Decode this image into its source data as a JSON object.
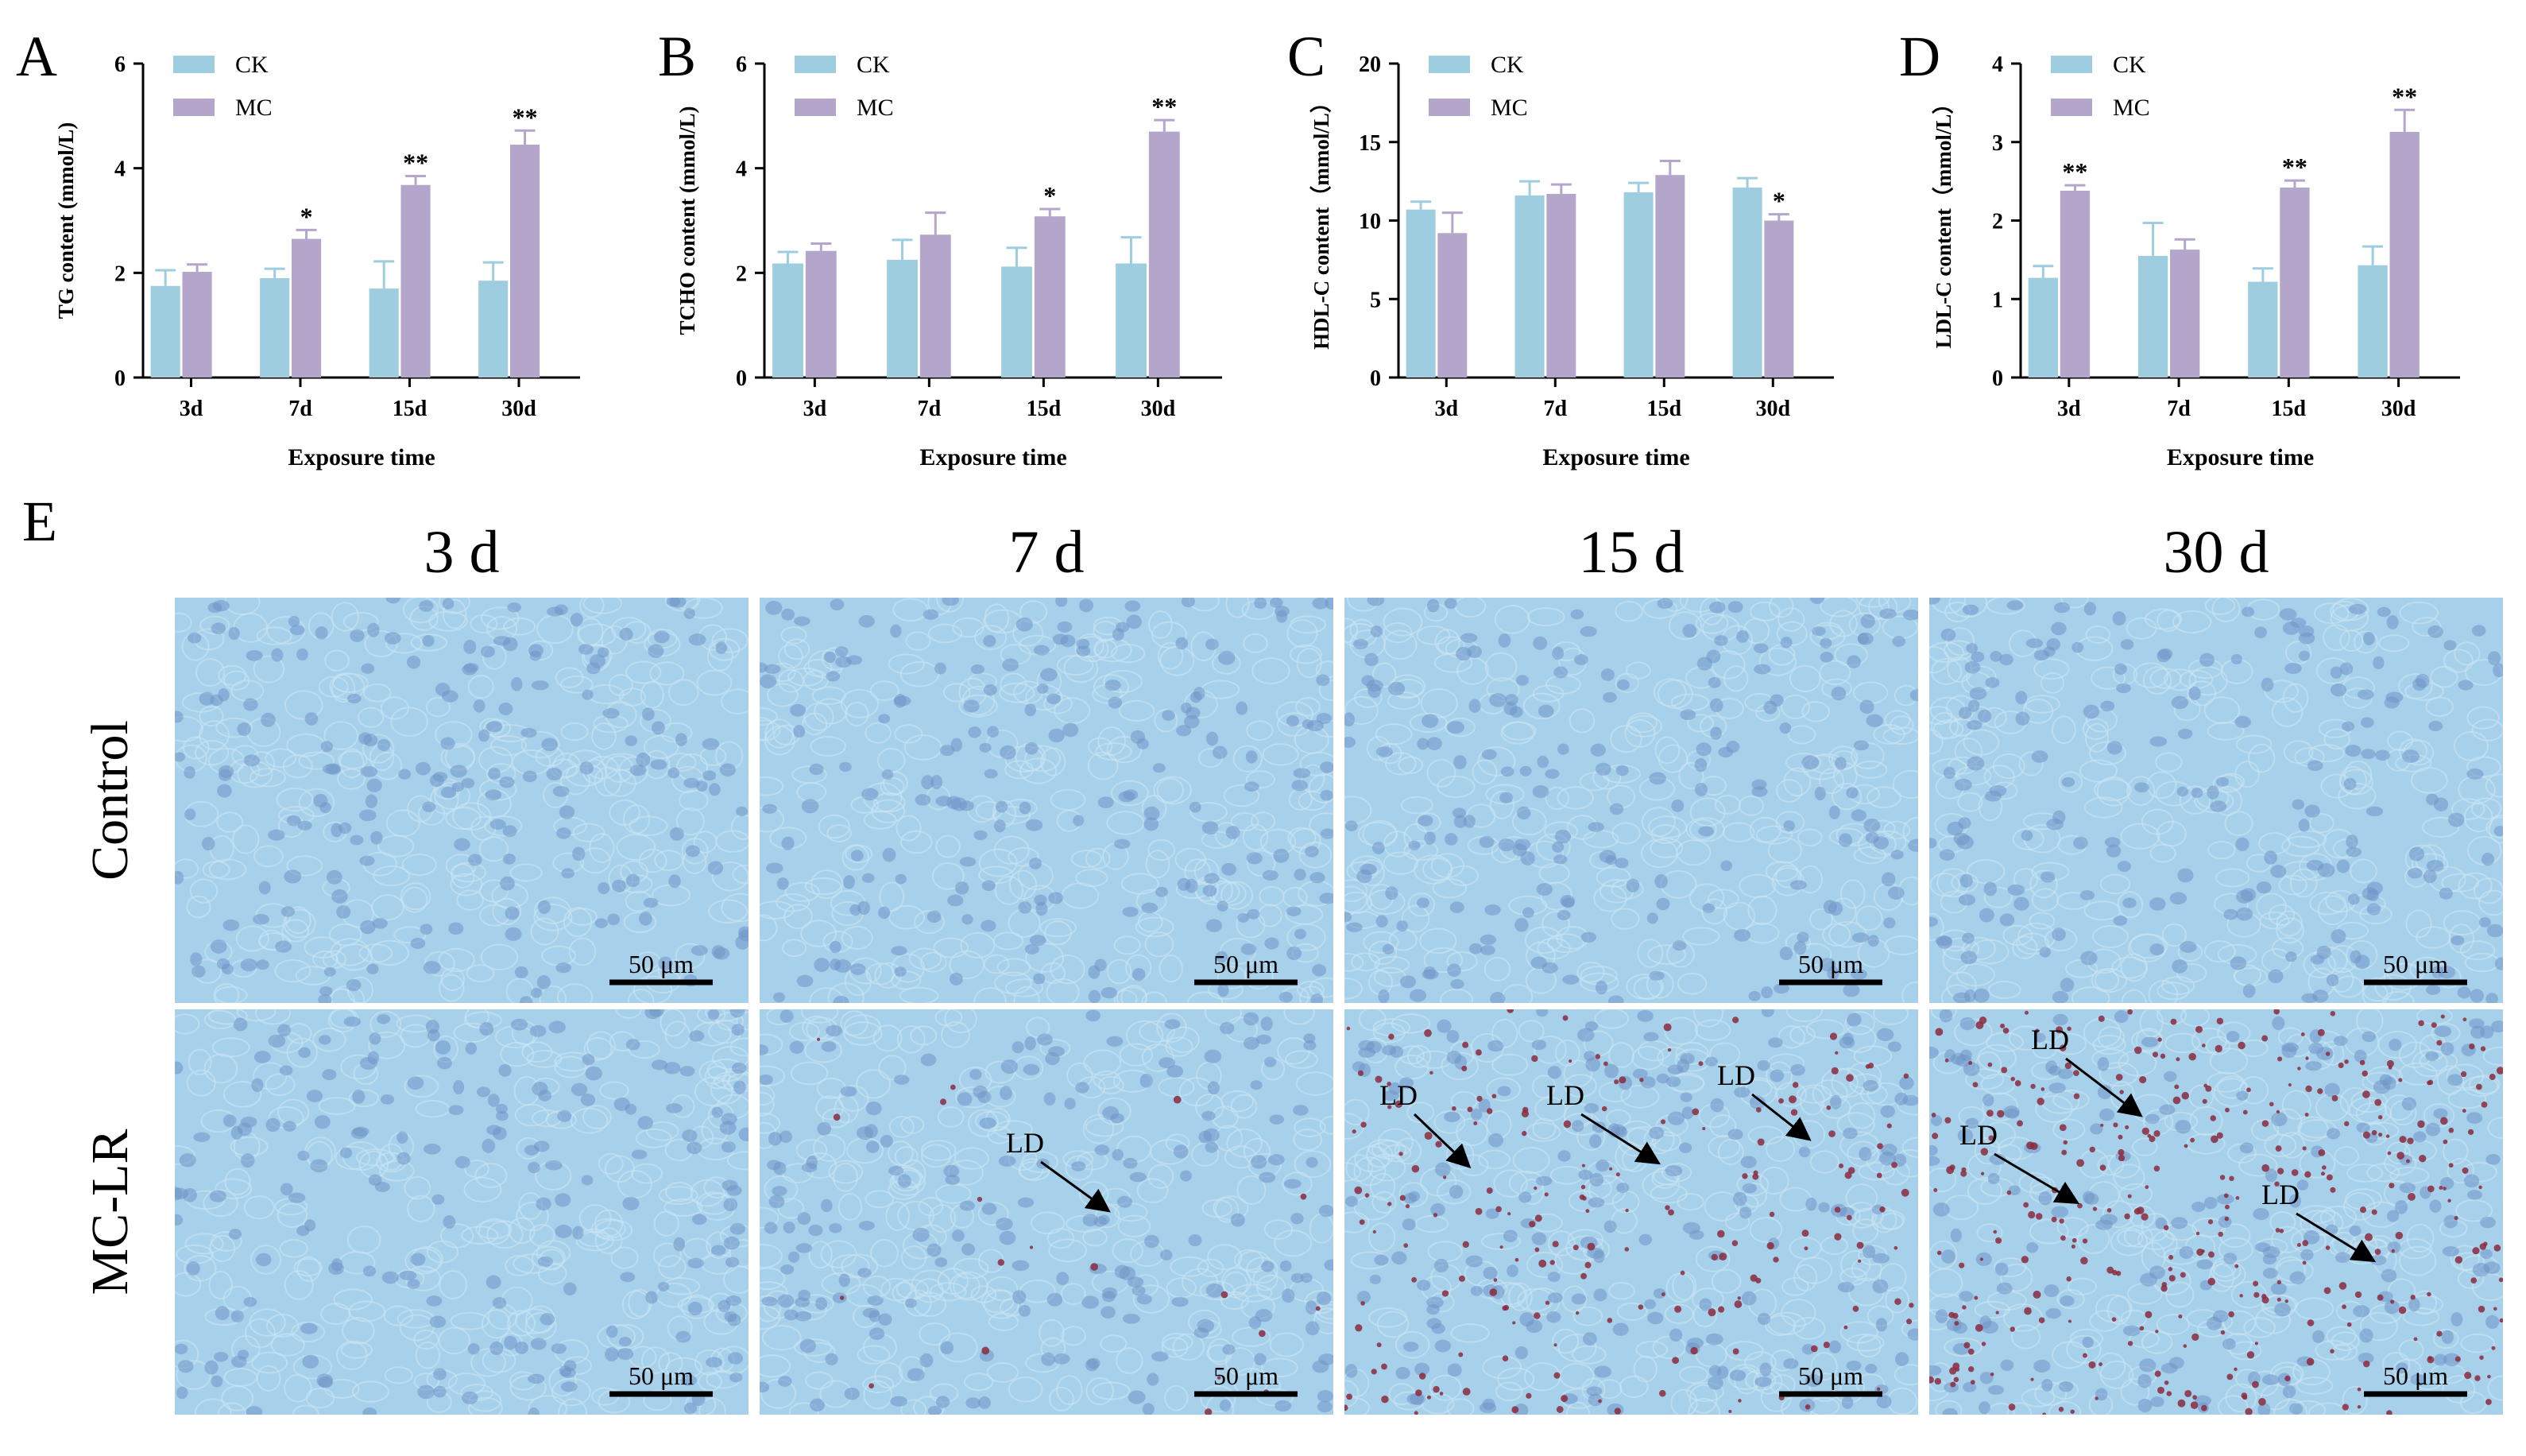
{
  "legend_labels": [
    "CK",
    "MC"
  ],
  "colors": {
    "CK": "#9ecde0",
    "MC": "#b3a6ca",
    "tissue_bg": "#a7d1ea",
    "nucleus": "#6f93c7",
    "lipid": "#8b2a3e"
  },
  "chart_data": [
    {
      "panel": "A",
      "type": "bar",
      "categories": [
        "3d",
        "7d",
        "15d",
        "30d"
      ],
      "ylabel": "TG content (mmol/L)",
      "xlabel": "Exposure time",
      "ylim": [
        0,
        6
      ],
      "yticks": [
        "0",
        "2",
        "4",
        "6"
      ],
      "series": [
        {
          "name": "CK",
          "values": [
            1.75,
            1.9,
            1.7,
            1.85
          ],
          "errors": [
            0.3,
            0.18,
            0.52,
            0.35
          ]
        },
        {
          "name": "MC",
          "values": [
            2.02,
            2.65,
            3.68,
            4.45
          ],
          "errors": [
            0.14,
            0.17,
            0.17,
            0.27
          ]
        }
      ],
      "significance": [
        "",
        "*",
        "**",
        "**"
      ],
      "legend": "top-left",
      "grid": false
    },
    {
      "panel": "B",
      "type": "bar",
      "categories": [
        "3d",
        "7d",
        "15d",
        "30d"
      ],
      "ylabel": "TCHO content (mmol/L)",
      "xlabel": "Exposure time",
      "ylim": [
        0,
        6
      ],
      "yticks": [
        "0",
        "2",
        "4",
        "6"
      ],
      "series": [
        {
          "name": "CK",
          "values": [
            2.18,
            2.25,
            2.12,
            2.18
          ],
          "errors": [
            0.22,
            0.38,
            0.36,
            0.5
          ]
        },
        {
          "name": "MC",
          "values": [
            2.42,
            2.73,
            3.08,
            4.7
          ],
          "errors": [
            0.14,
            0.42,
            0.14,
            0.22
          ]
        }
      ],
      "significance": [
        "",
        "",
        "*",
        "**"
      ],
      "legend": "top-left",
      "grid": false
    },
    {
      "panel": "C",
      "type": "bar",
      "categories": [
        "3d",
        "7d",
        "15d",
        "30d"
      ],
      "ylabel": "HDL-C content（mmol/L）",
      "xlabel": "Exposure time",
      "ylim": [
        0,
        20
      ],
      "yticks": [
        "0",
        "5",
        "10",
        "15",
        "20"
      ],
      "series": [
        {
          "name": "CK",
          "values": [
            10.7,
            11.6,
            11.8,
            12.1
          ],
          "errors": [
            0.5,
            0.9,
            0.6,
            0.6
          ]
        },
        {
          "name": "MC",
          "values": [
            9.2,
            11.7,
            12.9,
            10.0
          ],
          "errors": [
            1.3,
            0.6,
            0.9,
            0.4
          ]
        }
      ],
      "significance": [
        "",
        "",
        "",
        "*"
      ],
      "legend": "top-left",
      "grid": false
    },
    {
      "panel": "D",
      "type": "bar",
      "categories": [
        "3d",
        "7d",
        "15d",
        "30d"
      ],
      "ylabel": "LDL-C content（mmol/L）",
      "xlabel": "Exposure time",
      "ylim": [
        0,
        4
      ],
      "yticks": [
        "0",
        "1",
        "2",
        "3",
        "4"
      ],
      "series": [
        {
          "name": "CK",
          "values": [
            1.27,
            1.55,
            1.22,
            1.43
          ],
          "errors": [
            0.15,
            0.42,
            0.17,
            0.24
          ]
        },
        {
          "name": "MC",
          "values": [
            2.38,
            1.63,
            2.42,
            3.13
          ],
          "errors": [
            0.07,
            0.13,
            0.09,
            0.28
          ]
        }
      ],
      "significance": [
        "**",
        "",
        "**",
        "**"
      ],
      "legend": "top-left",
      "grid": false
    }
  ],
  "micrographs": {
    "panel": "E",
    "columns": [
      "3 d",
      "7 d",
      "15 d",
      "30 d"
    ],
    "rows": [
      "Control",
      "MC-LR"
    ],
    "scale_bar": "50 μm",
    "annotation": "LD",
    "lipid_level": [
      [
        0,
        0,
        0,
        0
      ],
      [
        0,
        0.05,
        0.5,
        0.9
      ]
    ]
  }
}
